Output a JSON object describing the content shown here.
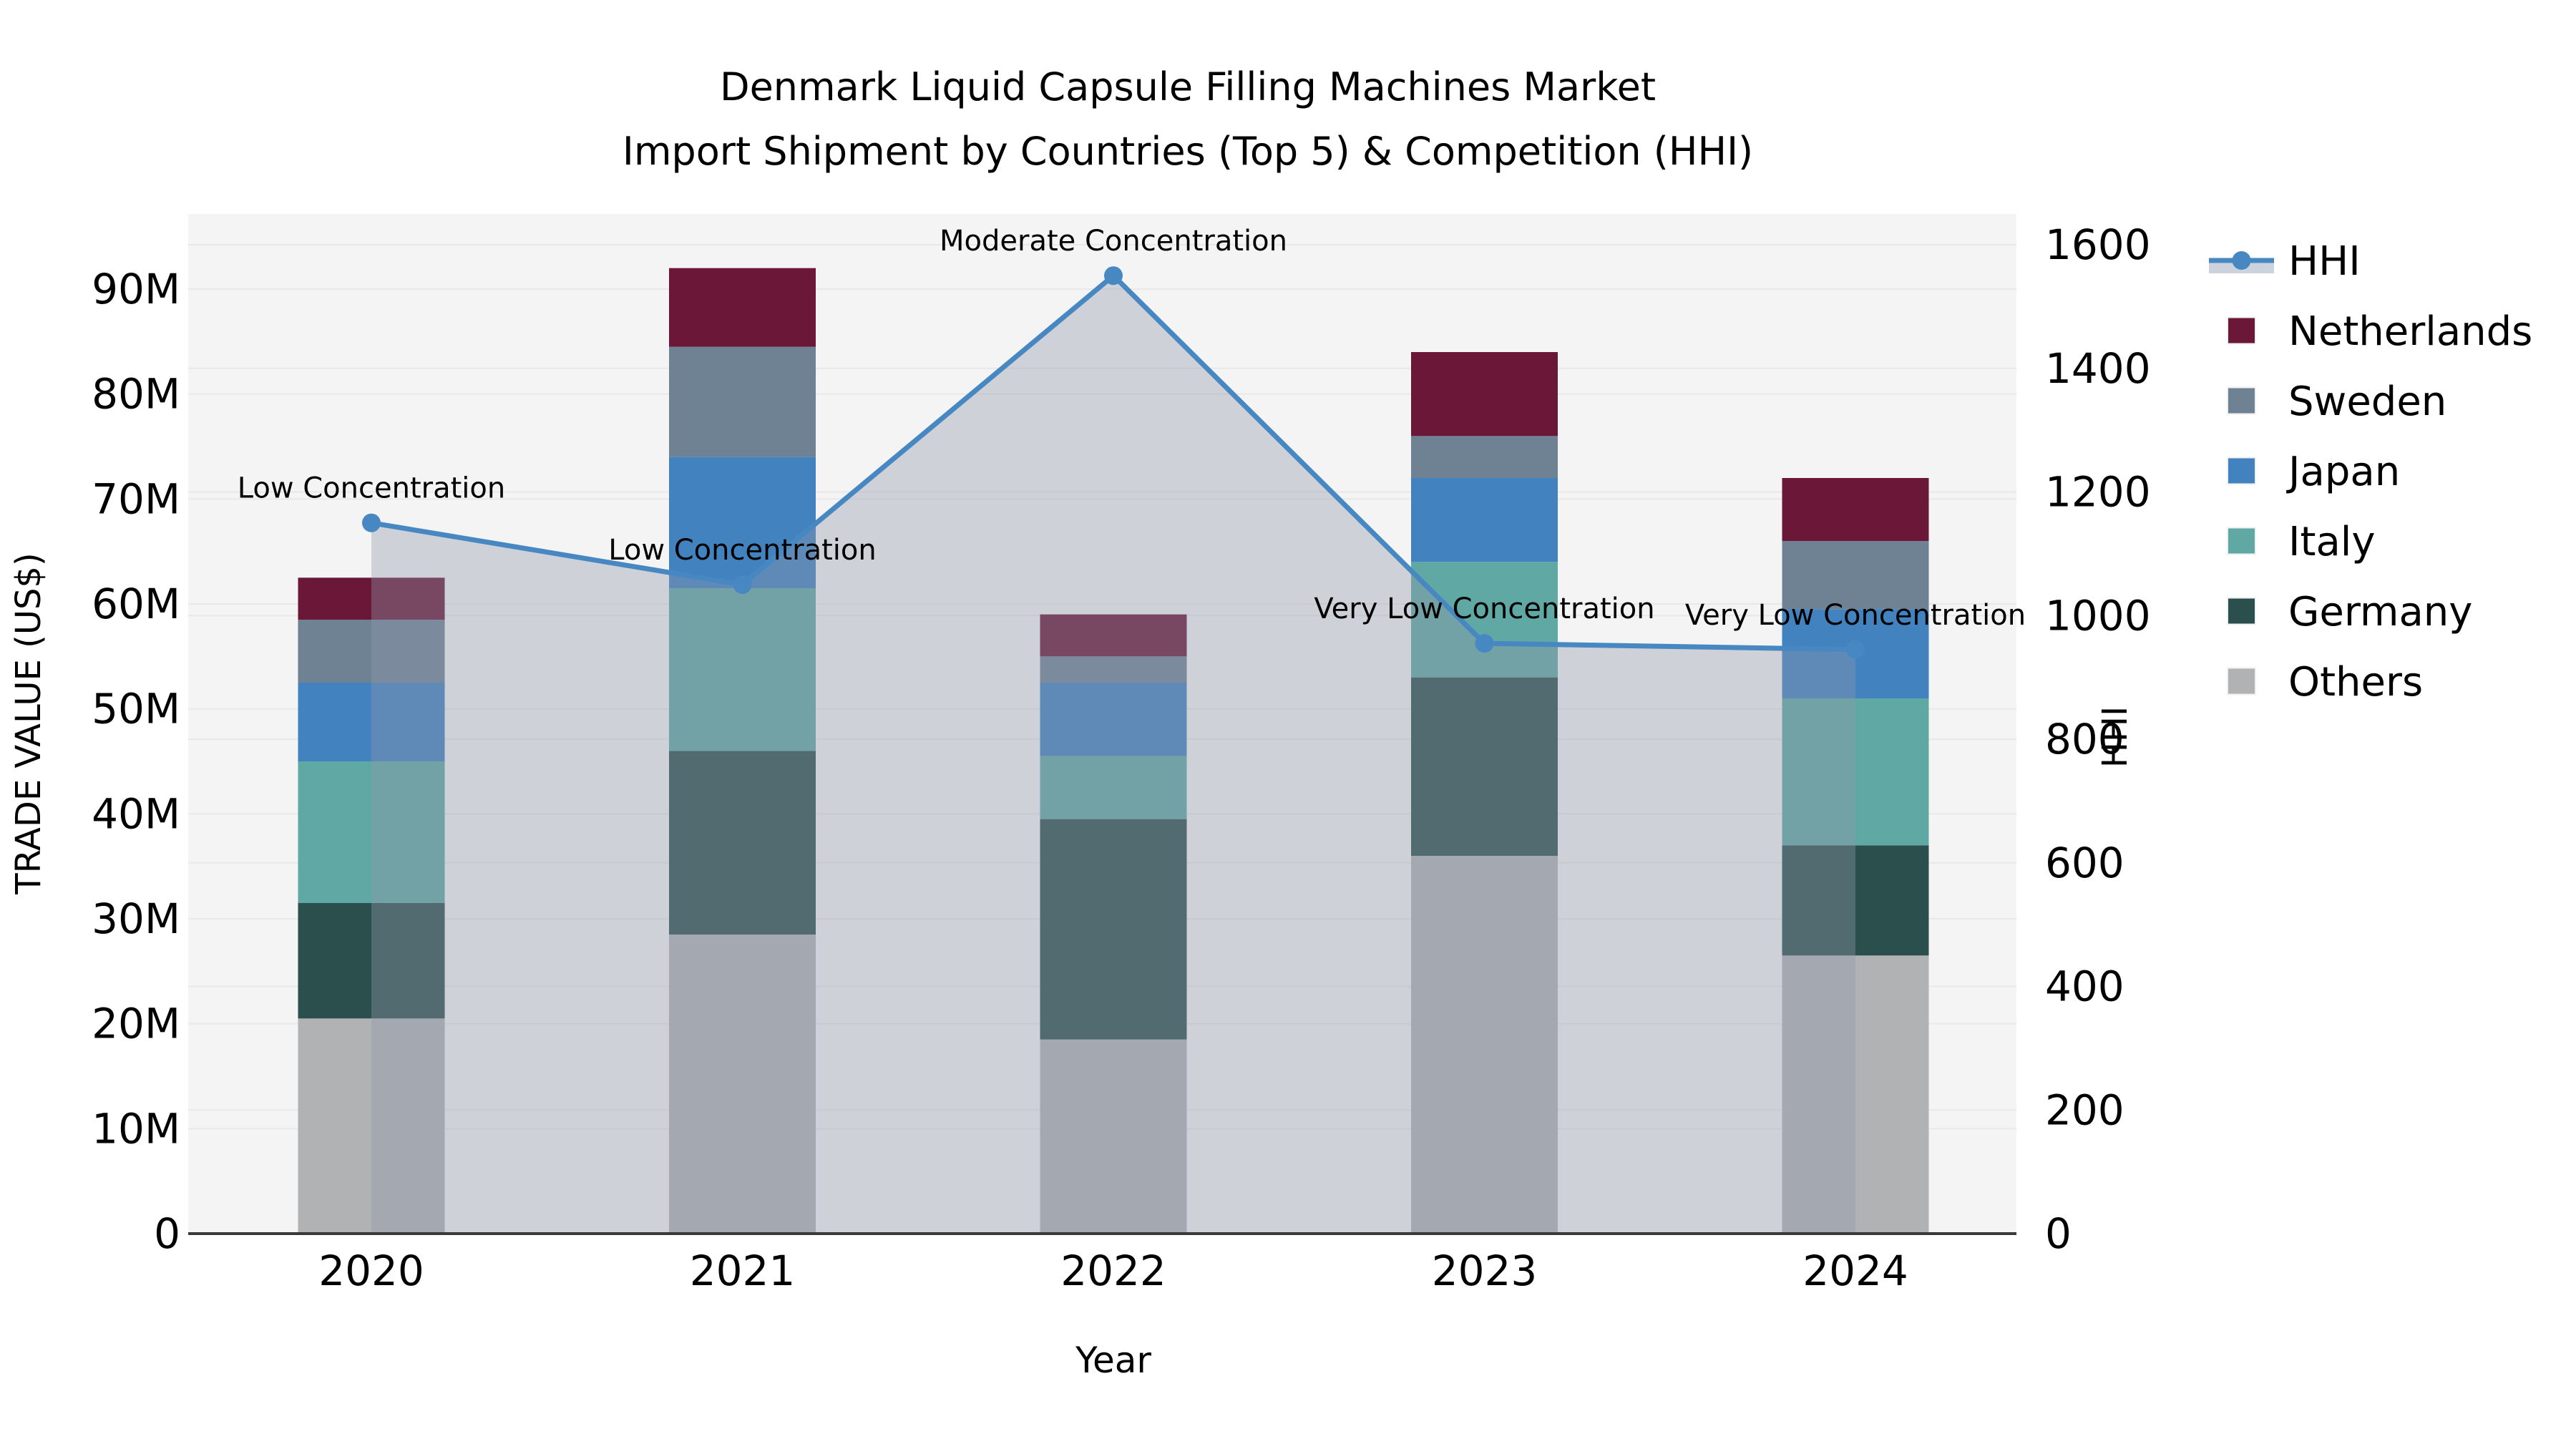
{
  "title": {
    "line1": "Denmark Liquid Capsule Filling Machines Market",
    "line2": "Import Shipment by Countries (Top 5) & Competition (HHI)"
  },
  "axes": {
    "x_label": "Year",
    "y_left_label": "TRADE VALUE (US$)",
    "y_right_label": "HHI",
    "y_left_ticks": [
      "0",
      "10M",
      "20M",
      "30M",
      "40M",
      "50M",
      "60M",
      "70M",
      "80M",
      "90M"
    ],
    "y_left_tick_values": [
      0,
      10,
      20,
      30,
      40,
      50,
      60,
      70,
      80,
      90
    ],
    "y_right_ticks": [
      "0",
      "200",
      "400",
      "600",
      "800",
      "1000",
      "1200",
      "1400",
      "1600"
    ],
    "y_right_tick_values": [
      0,
      200,
      400,
      600,
      800,
      1000,
      1200,
      1400,
      1600
    ],
    "y_left_unit": "US$ millions",
    "y_right_max": 1600
  },
  "legend": {
    "items": [
      {
        "label": "HHI",
        "type": "line-marker",
        "color": "#4788c2",
        "band_color": "#ccd3dc"
      },
      {
        "label": "Netherlands",
        "type": "swatch",
        "color": "#6a1738"
      },
      {
        "label": "Sweden",
        "type": "swatch",
        "color": "#6f8294"
      },
      {
        "label": "Japan",
        "type": "swatch",
        "color": "#4282bf"
      },
      {
        "label": "Italy",
        "type": "swatch",
        "color": "#60a8a4"
      },
      {
        "label": "Germany",
        "type": "swatch",
        "color": "#2b4f4c"
      },
      {
        "label": "Others",
        "type": "swatch",
        "color": "#b0b2b3"
      }
    ]
  },
  "chart_data": {
    "type": "combo: stacked bar (trade value, left axis) + line with area fill (HHI, right axis)",
    "categories": [
      "2020",
      "2021",
      "2022",
      "2023",
      "2024"
    ],
    "bar_unit": "US$ millions",
    "series": [
      {
        "name": "Others",
        "color": "#b0b2b3",
        "values": [
          20.5,
          28.5,
          18.5,
          36.0,
          26.5
        ]
      },
      {
        "name": "Germany",
        "color": "#2b4f4c",
        "values": [
          11.0,
          17.5,
          21.0,
          17.0,
          10.5
        ]
      },
      {
        "name": "Italy",
        "color": "#60a8a4",
        "values": [
          13.5,
          15.5,
          6.0,
          11.0,
          14.0
        ]
      },
      {
        "name": "Japan",
        "color": "#4282bf",
        "values": [
          7.5,
          12.5,
          7.0,
          8.0,
          8.5
        ]
      },
      {
        "name": "Sweden",
        "color": "#6f8294",
        "values": [
          6.0,
          10.5,
          2.5,
          4.0,
          6.5
        ]
      },
      {
        "name": "Netherlands",
        "color": "#6a1738",
        "values": [
          4.0,
          7.5,
          4.0,
          8.0,
          6.0
        ]
      }
    ],
    "bar_totals": [
      62.5,
      92.0,
      59.0,
      84.0,
      72.0
    ],
    "hhi": {
      "name": "HHI",
      "line_color": "#4788c2",
      "area_fill": "rgba(145,153,170,0.38)",
      "values": [
        1150,
        1050,
        1550,
        955,
        945
      ]
    },
    "annotations": [
      {
        "category": "2020",
        "text": "Low Concentration"
      },
      {
        "category": "2021",
        "text": "Low Concentration"
      },
      {
        "category": "2022",
        "text": "Moderate Concentration"
      },
      {
        "category": "2023",
        "text": "Very Low Concentration"
      },
      {
        "category": "2024",
        "text": "Very Low Concentration"
      }
    ],
    "xlabel": "Year",
    "ylabel_left": "TRADE VALUE (US$)",
    "ylabel_right": "HHI",
    "ylim_left": [
      0,
      97
    ],
    "ylim_right": [
      0,
      1650
    ],
    "grid": true,
    "legend_position": "right",
    "plot_bg": "#f4f4f4",
    "grid_color": "#e8e8e8",
    "spine_color": "#3a3a3a"
  }
}
